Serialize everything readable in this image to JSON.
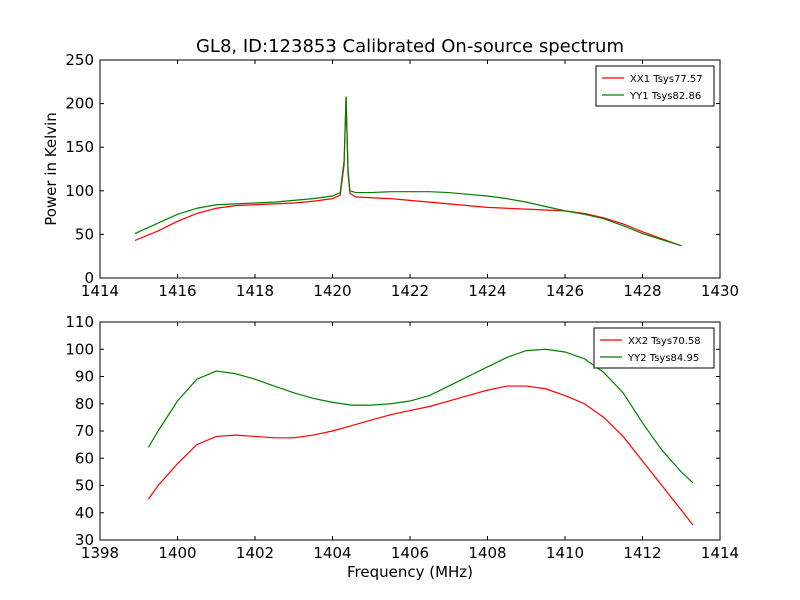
{
  "chart_data": [
    {
      "type": "line",
      "title": "GL8, ID:123853 Calibrated On-source spectrum",
      "xlabel": "",
      "ylabel": "Power in Kelvin",
      "xlim": [
        1414,
        1430
      ],
      "ylim": [
        0,
        250
      ],
      "xticks": [
        1414,
        1416,
        1418,
        1420,
        1422,
        1424,
        1426,
        1428,
        1430
      ],
      "yticks": [
        0,
        50,
        100,
        150,
        200,
        250
      ],
      "legend_position": "top-right",
      "series": [
        {
          "name": "XX1 Tsys77.57",
          "color": "#ff0000",
          "x": [
            1414.9,
            1415.5,
            1416.0,
            1416.5,
            1417.0,
            1417.5,
            1418.0,
            1418.5,
            1419.0,
            1419.5,
            1420.0,
            1420.2,
            1420.3,
            1420.35,
            1420.4,
            1420.45,
            1420.6,
            1421.0,
            1421.5,
            1422.0,
            1422.5,
            1423.0,
            1423.5,
            1424.0,
            1424.5,
            1425.0,
            1425.5,
            1426.0,
            1426.5,
            1427.0,
            1427.5,
            1428.0,
            1428.5,
            1429.0
          ],
          "y": [
            43,
            54,
            65,
            74,
            80,
            83,
            84,
            85,
            86,
            88,
            91,
            95,
            130,
            208,
            120,
            97,
            93,
            92,
            91,
            89,
            87,
            85,
            83,
            81,
            80,
            79,
            78,
            77,
            74,
            69,
            62,
            53,
            45,
            37
          ]
        },
        {
          "name": "YY1 Tsys82.86",
          "color": "#008000",
          "x": [
            1414.9,
            1415.5,
            1416.0,
            1416.5,
            1417.0,
            1417.5,
            1418.0,
            1418.5,
            1419.0,
            1419.5,
            1420.0,
            1420.2,
            1420.3,
            1420.35,
            1420.4,
            1420.45,
            1420.6,
            1421.0,
            1421.5,
            1422.0,
            1422.5,
            1423.0,
            1423.5,
            1424.0,
            1424.5,
            1425.0,
            1425.5,
            1426.0,
            1426.5,
            1427.0,
            1427.5,
            1428.0,
            1428.5,
            1429.0
          ],
          "y": [
            51,
            63,
            73,
            80,
            84,
            85,
            86,
            87,
            89,
            91,
            94,
            98,
            135,
            208,
            125,
            100,
            98,
            98,
            99,
            99,
            99,
            98,
            96,
            94,
            91,
            87,
            82,
            77,
            73,
            68,
            60,
            51,
            44,
            37
          ]
        }
      ]
    },
    {
      "type": "line",
      "title": "",
      "xlabel": "Frequency (MHz)",
      "ylabel": "",
      "xlim": [
        1398,
        1414
      ],
      "ylim": [
        30,
        110
      ],
      "xticks": [
        1398,
        1400,
        1402,
        1404,
        1406,
        1408,
        1410,
        1412,
        1414
      ],
      "yticks": [
        30,
        40,
        50,
        60,
        70,
        80,
        90,
        100,
        110
      ],
      "legend_position": "top-right",
      "series": [
        {
          "name": "XX2 Tsys70.58",
          "color": "#ff0000",
          "x": [
            1399.25,
            1399.5,
            1400.0,
            1400.5,
            1401.0,
            1401.5,
            1402.0,
            1402.5,
            1403.0,
            1403.5,
            1404.0,
            1404.5,
            1405.0,
            1405.5,
            1406.0,
            1406.5,
            1407.0,
            1407.5,
            1408.0,
            1408.5,
            1409.0,
            1409.5,
            1410.0,
            1410.5,
            1411.0,
            1411.5,
            1412.0,
            1412.5,
            1413.0,
            1413.3
          ],
          "y": [
            45,
            50,
            58,
            65,
            68,
            68.5,
            68,
            67.5,
            67.5,
            68.5,
            70,
            72,
            74,
            76,
            77.5,
            79,
            81,
            83,
            85,
            86.5,
            86.5,
            85.5,
            83,
            80,
            75,
            68,
            59,
            50,
            41,
            35.5
          ]
        },
        {
          "name": "YY2 Tsys84.95",
          "color": "#008000",
          "x": [
            1399.25,
            1399.5,
            1400.0,
            1400.5,
            1401.0,
            1401.5,
            1402.0,
            1402.5,
            1403.0,
            1403.5,
            1404.0,
            1404.5,
            1405.0,
            1405.5,
            1406.0,
            1406.5,
            1407.0,
            1407.5,
            1408.0,
            1408.5,
            1409.0,
            1409.5,
            1410.0,
            1410.5,
            1411.0,
            1411.5,
            1412.0,
            1412.5,
            1413.0,
            1413.3
          ],
          "y": [
            64,
            70,
            81,
            89,
            92,
            91,
            89,
            86.5,
            84,
            82,
            80.5,
            79.5,
            79.5,
            80,
            81,
            83,
            86.5,
            90,
            93.5,
            97,
            99.5,
            100,
            99,
            96.5,
            91.5,
            84,
            73,
            63,
            55,
            51
          ]
        }
      ]
    }
  ]
}
